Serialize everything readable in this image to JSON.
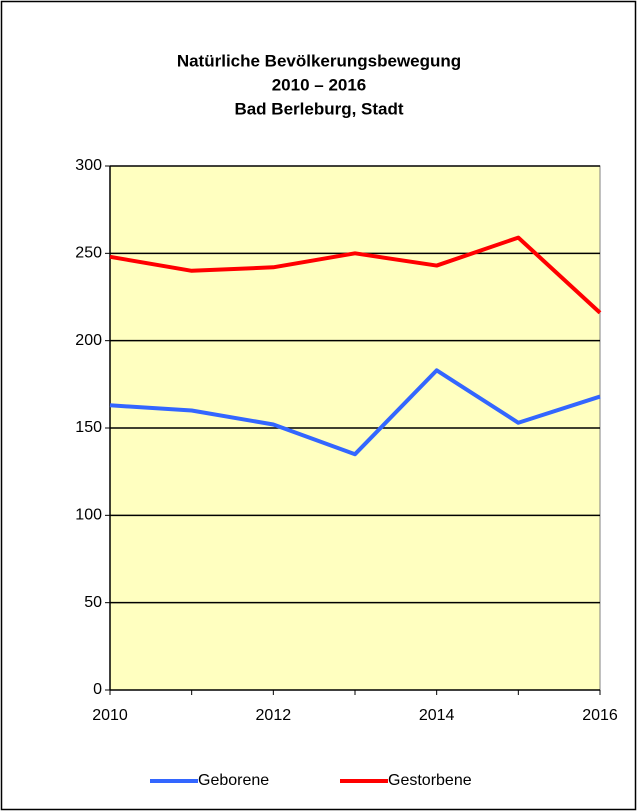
{
  "chart_data": {
    "type": "line",
    "title": [
      "Natürliche Bevölkerungsbewegung",
      "2010 – 2016",
      "Bad Berleburg, Stadt"
    ],
    "x": [
      2010,
      2011,
      2012,
      2013,
      2014,
      2015,
      2016
    ],
    "series": [
      {
        "name": "Geborene",
        "color": "#3366ff",
        "values": [
          163,
          160,
          152,
          135,
          183,
          153,
          168
        ]
      },
      {
        "name": "Gestorbene",
        "color": "#ff0000",
        "values": [
          248,
          240,
          242,
          250,
          243,
          259,
          216
        ]
      }
    ],
    "xlim": [
      2010,
      2016
    ],
    "xticks": [
      2010,
      2012,
      2014,
      2016
    ],
    "ylim": [
      0,
      300
    ],
    "yticks": [
      0,
      50,
      100,
      150,
      200,
      250,
      300
    ],
    "grid": true,
    "legend": "bottom",
    "background": "#ffffc0"
  }
}
